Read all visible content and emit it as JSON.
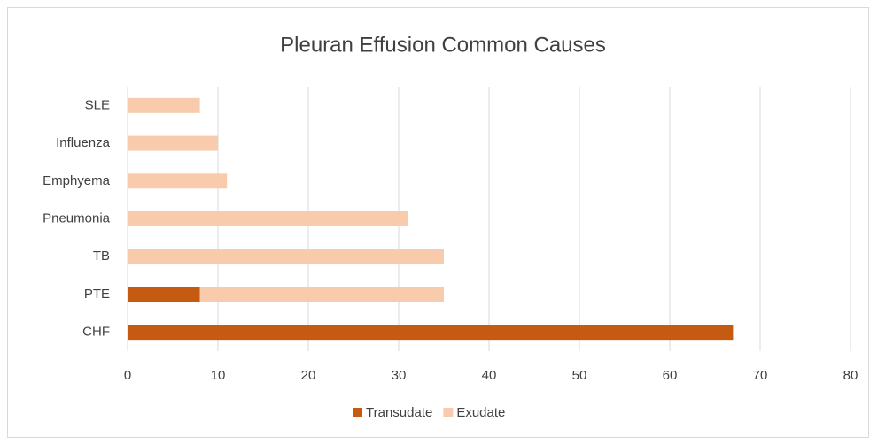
{
  "chart_data": {
    "type": "bar",
    "orientation": "horizontal",
    "stacked": true,
    "title": "Pleuran Effusion Common Causes",
    "categories": [
      "CHF",
      "PTE",
      "TB",
      "Pneumonia",
      "Emphyema",
      "Influenza",
      "SLE"
    ],
    "series": [
      {
        "name": "Transudate",
        "color": "#c55a11",
        "values": [
          67,
          8,
          0,
          0,
          0,
          0,
          0
        ]
      },
      {
        "name": "Exudate",
        "color": "#f8cbad",
        "values": [
          0,
          27,
          35,
          31,
          11,
          10,
          8
        ]
      }
    ],
    "xlim": [
      0,
      80
    ],
    "xticks": [
      0,
      10,
      20,
      30,
      40,
      50,
      60,
      70,
      80
    ],
    "grid": true,
    "legend": "bottom"
  }
}
